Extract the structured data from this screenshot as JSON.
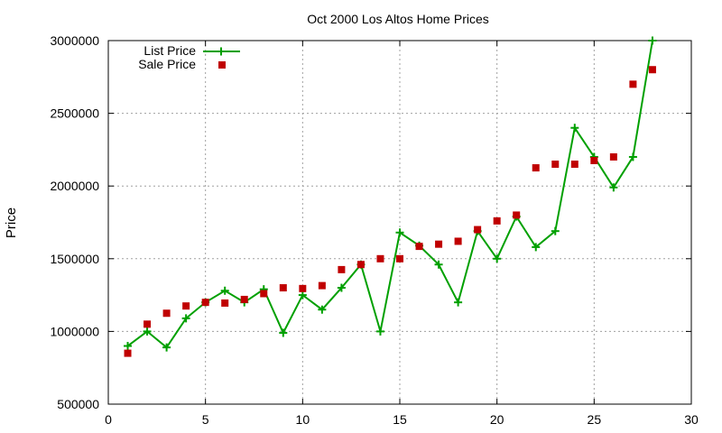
{
  "chart_data": {
    "type": "line",
    "title": "Oct 2000 Los Altos Home Prices",
    "xlabel": "",
    "ylabel": "Price",
    "xlim": [
      0,
      30
    ],
    "ylim": [
      500000,
      3000000
    ],
    "xticks": [
      0,
      5,
      10,
      15,
      20,
      25,
      30
    ],
    "yticks": [
      500000,
      1000000,
      1500000,
      2000000,
      2500000,
      3000000
    ],
    "grid": true,
    "legend_position": "top-left",
    "series": [
      {
        "name": "List Price",
        "style": "linespoints",
        "marker": "plus",
        "color": "#00a000",
        "x": [
          1,
          2,
          3,
          4,
          5,
          6,
          7,
          8,
          9,
          10,
          11,
          12,
          13,
          14,
          15,
          16,
          17,
          18,
          19,
          20,
          21,
          22,
          23,
          24,
          25,
          26,
          27,
          28
        ],
        "values": [
          900000,
          1000000,
          890000,
          1090000,
          1200000,
          1280000,
          1200000,
          1290000,
          990000,
          1250000,
          1150000,
          1300000,
          1460000,
          1000000,
          1680000,
          1590000,
          1460000,
          1200000,
          1690000,
          1500000,
          1790000,
          1580000,
          1690000,
          2400000,
          2200000,
          1990000,
          2200000,
          3000000
        ]
      },
      {
        "name": "Sale Price",
        "style": "points",
        "marker": "square",
        "color": "#c00000",
        "x": [
          1,
          2,
          3,
          4,
          5,
          6,
          7,
          8,
          9,
          10,
          11,
          12,
          13,
          14,
          15,
          16,
          17,
          18,
          19,
          20,
          21,
          22,
          23,
          24,
          25,
          26,
          27,
          28
        ],
        "values": [
          850000,
          1050000,
          1125000,
          1175000,
          1200000,
          1195000,
          1220000,
          1260000,
          1300000,
          1295000,
          1315000,
          1425000,
          1460000,
          1500000,
          1500000,
          1585000,
          1600000,
          1620000,
          1700000,
          1760000,
          1800000,
          2125000,
          2150000,
          2150000,
          2175000,
          2200000,
          2700000,
          2800000
        ]
      }
    ]
  }
}
